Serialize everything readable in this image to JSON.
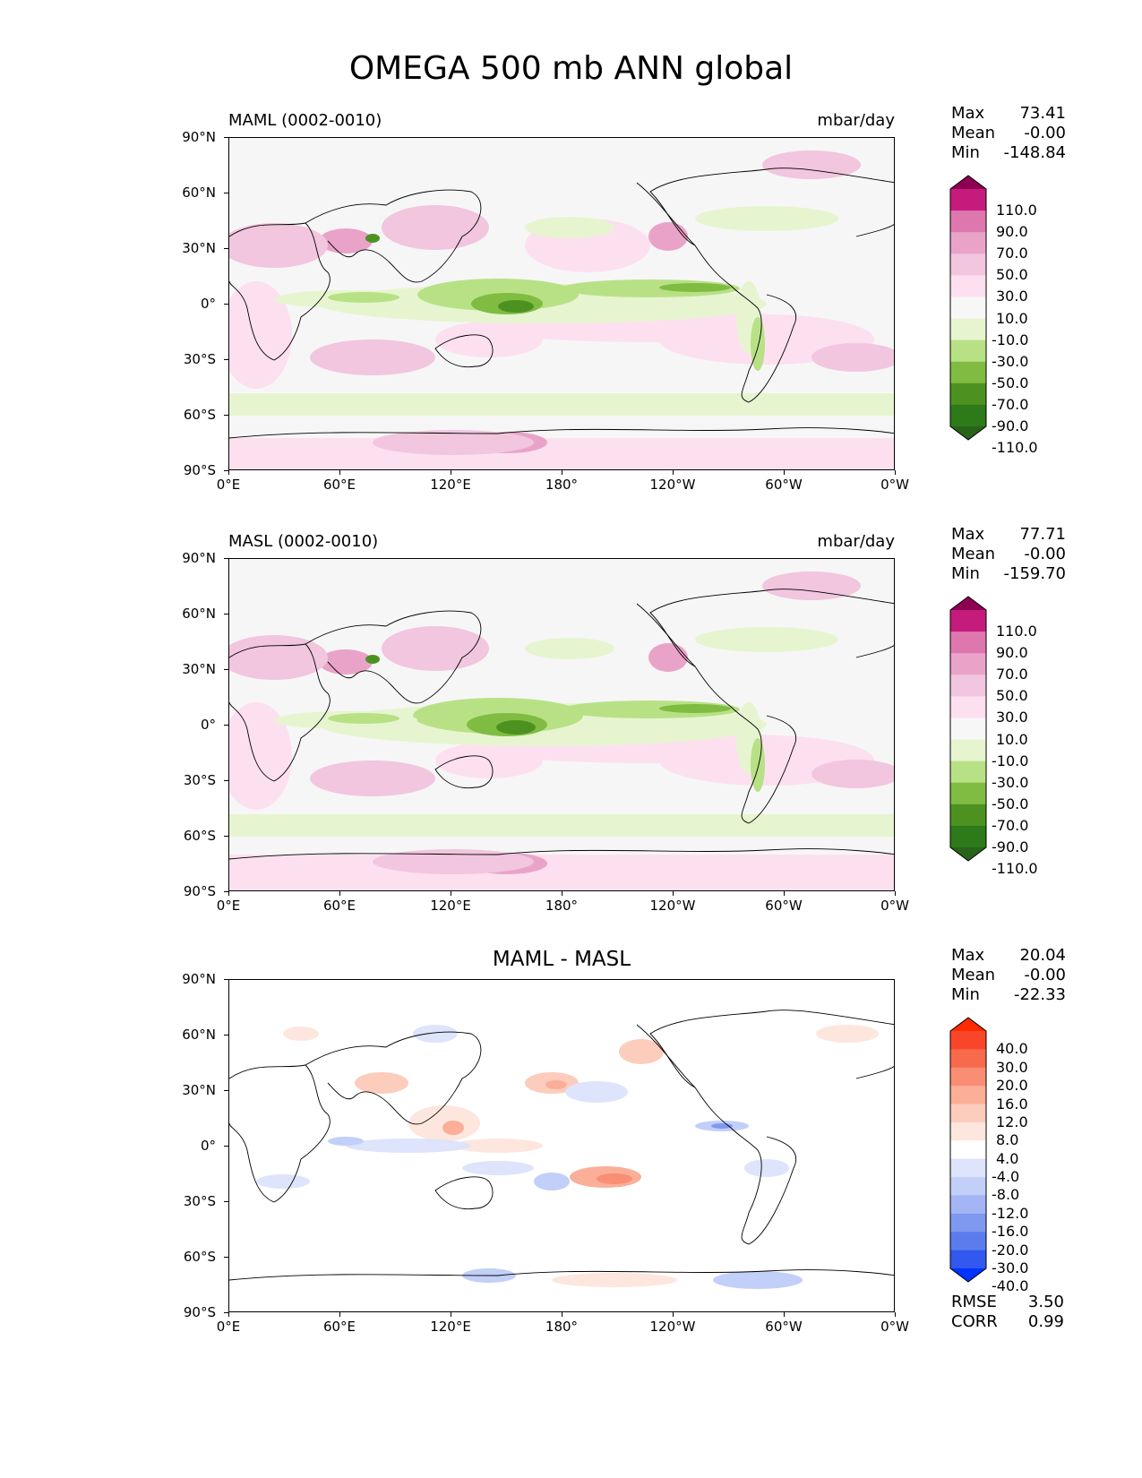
{
  "title": "OMEGA 500 mb ANN global",
  "yticks": [
    "90°N",
    "60°N",
    "30°N",
    "0°",
    "30°S",
    "60°S",
    "90°S"
  ],
  "xticks": [
    "0°E",
    "60°E",
    "120°E",
    "180°",
    "120°W",
    "60°W",
    "0°W"
  ],
  "panels": [
    {
      "left_title": "MAML (0002-0010)",
      "right_title": "mbar/day",
      "center_title": "",
      "stats": {
        "max_label": "Max",
        "max": "73.41",
        "mean_label": "Mean",
        "mean": "-0.00",
        "min_label": "Min",
        "min": "-148.84"
      },
      "colorbar": {
        "labels": [
          "110.0",
          "90.0",
          "70.0",
          "50.0",
          "30.0",
          "10.0",
          "-10.0",
          "-30.0",
          "-50.0",
          "-70.0",
          "-90.0",
          "-110.0"
        ],
        "colors": [
          "#8e0152",
          "#c51b7d",
          "#de77ae",
          "#e9a3c9",
          "#f1c6de",
          "#fde0ef",
          "#f7f7f7",
          "#e6f5d0",
          "#b8e186",
          "#7fbc41",
          "#4d9221",
          "#2d7a1a",
          "#276419"
        ]
      }
    },
    {
      "left_title": "MASL (0002-0010)",
      "right_title": "mbar/day",
      "center_title": "",
      "stats": {
        "max_label": "Max",
        "max": "77.71",
        "mean_label": "Mean",
        "mean": "-0.00",
        "min_label": "Min",
        "min": "-159.70"
      },
      "colorbar": {
        "labels": [
          "110.0",
          "90.0",
          "70.0",
          "50.0",
          "30.0",
          "10.0",
          "-10.0",
          "-30.0",
          "-50.0",
          "-70.0",
          "-90.0",
          "-110.0"
        ],
        "colors": [
          "#8e0152",
          "#c51b7d",
          "#de77ae",
          "#e9a3c9",
          "#f1c6de",
          "#fde0ef",
          "#f7f7f7",
          "#e6f5d0",
          "#b8e186",
          "#7fbc41",
          "#4d9221",
          "#2d7a1a",
          "#276419"
        ]
      }
    },
    {
      "left_title": "",
      "right_title": "",
      "center_title": "MAML - MASL",
      "stats": {
        "max_label": "Max",
        "max": "20.04",
        "mean_label": "Mean",
        "mean": "-0.00",
        "min_label": "Min",
        "min": "-22.33"
      },
      "colorbar": {
        "labels": [
          "40.0",
          "30.0",
          "20.0",
          "16.0",
          "12.0",
          "8.0",
          "4.0",
          "-4.0",
          "-8.0",
          "-12.0",
          "-16.0",
          "-20.0",
          "-30.0",
          "-40.0"
        ],
        "colors": [
          "#ff2a00",
          "#f9462a",
          "#f86a4c",
          "#f98e74",
          "#fbae98",
          "#fcccbc",
          "#fde6dd",
          "#ffffff",
          "#dde4fb",
          "#c2cff8",
          "#a3b5f4",
          "#7f98f0",
          "#5c7cee",
          "#3358f0",
          "#0033ff"
        ]
      },
      "extra": {
        "rmse_label": "RMSE",
        "rmse": "3.50",
        "corr_label": "CORR",
        "corr": "0.99"
      }
    }
  ]
}
